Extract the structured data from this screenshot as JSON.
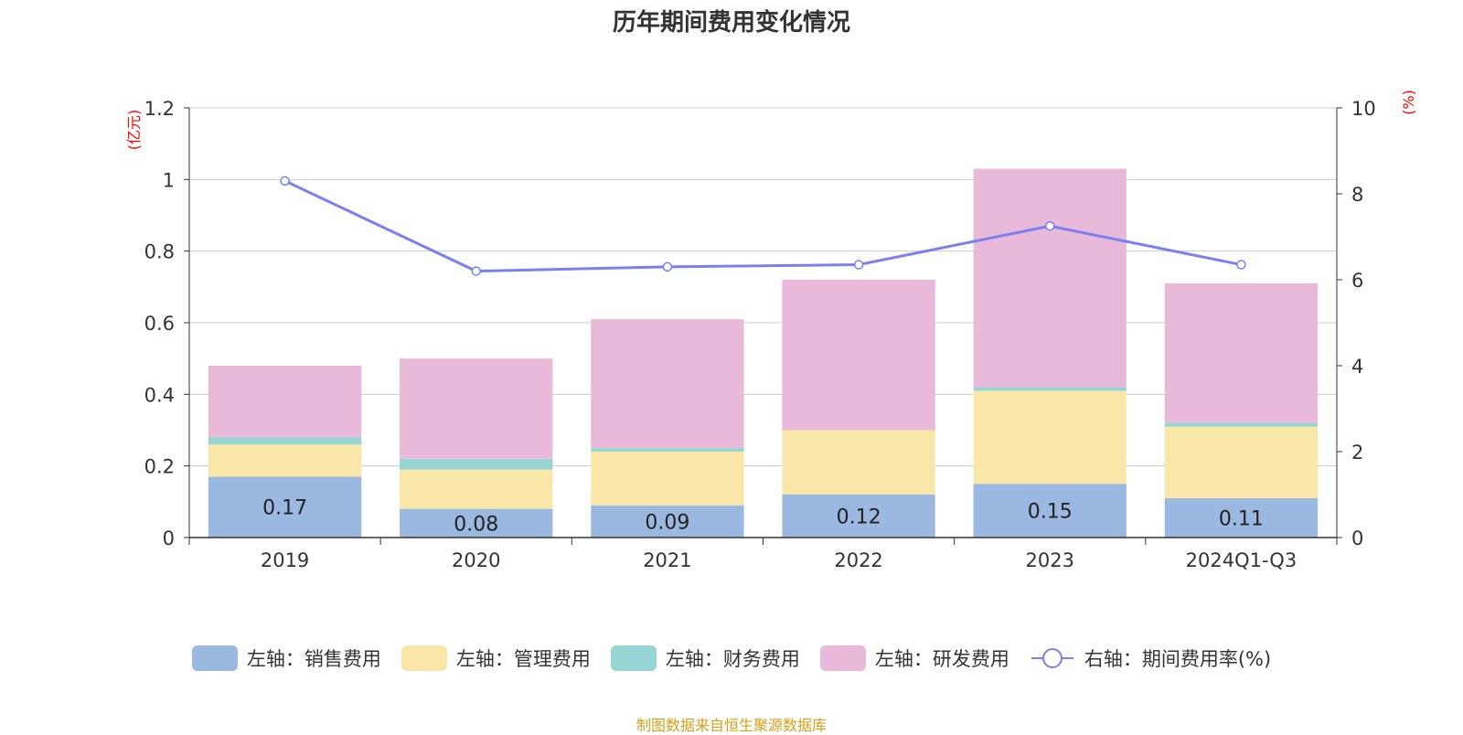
{
  "chart_data": {
    "type": "bar",
    "title": "历年期间费用变化情况",
    "categories": [
      "2019",
      "2020",
      "2021",
      "2022",
      "2023",
      "2024Q1-Q3"
    ],
    "left_axis": {
      "unit_label": "(亿元)",
      "ylim": [
        0,
        1.2
      ],
      "ticks": [
        "0",
        "0.2",
        "0.4",
        "0.6",
        "0.8",
        "1",
        "1.2"
      ]
    },
    "right_axis": {
      "unit_label": "(%)",
      "ylim": [
        0,
        10
      ],
      "ticks": [
        "0",
        "2",
        "4",
        "6",
        "8",
        "10"
      ]
    },
    "stacked": true,
    "series": [
      {
        "name": "左轴：销售费用",
        "axis": "left",
        "color": "#9bb8e1",
        "values": [
          0.17,
          0.08,
          0.09,
          0.12,
          0.15,
          0.11
        ],
        "show_labels": true
      },
      {
        "name": "左轴：管理费用",
        "axis": "left",
        "color": "#f8e7a9",
        "values": [
          0.09,
          0.11,
          0.15,
          0.18,
          0.26,
          0.2
        ],
        "show_labels": false
      },
      {
        "name": "左轴：财务费用",
        "axis": "left",
        "color": "#97d5d4",
        "values": [
          0.02,
          0.03,
          0.01,
          0.0,
          0.01,
          0.01
        ],
        "show_labels": false
      },
      {
        "name": "左轴：研发费用",
        "axis": "left",
        "color": "#e8b9d9",
        "values": [
          0.2,
          0.28,
          0.36,
          0.42,
          0.61,
          0.39
        ],
        "show_labels": false
      },
      {
        "name": "右轴：期间费用率(%)",
        "axis": "right",
        "type": "line",
        "color": "#7b7fef",
        "values": [
          8.3,
          6.2,
          6.3,
          6.35,
          7.25,
          6.35
        ]
      }
    ],
    "grid": true,
    "legend_position": "bottom"
  },
  "source_note": "制图数据来自恒生聚源数据库"
}
